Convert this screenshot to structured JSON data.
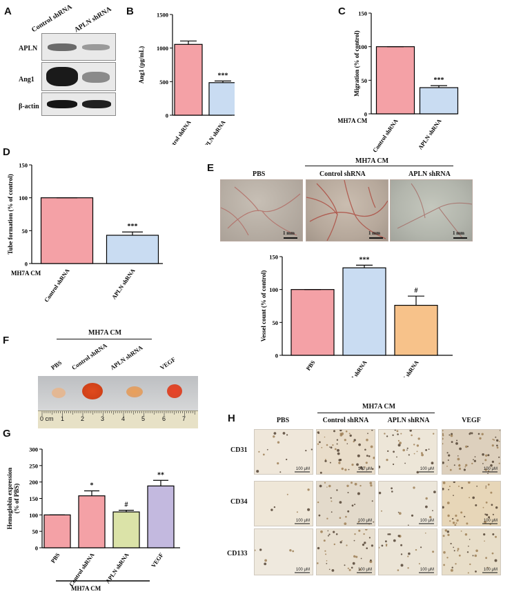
{
  "panels": {
    "A": {
      "label": "A",
      "col_labels": [
        "Control shRNA",
        "APLN shRNA"
      ],
      "row_labels": [
        "APLN",
        "Ang1",
        "β-actin"
      ]
    },
    "E": {
      "label": "E",
      "group_label": "MH7A CM",
      "photo_labels": [
        "PBS",
        "Control shRNA",
        "APLN shRNA"
      ],
      "scale_label": "1 mm"
    },
    "F": {
      "label": "F",
      "group_label": "MH7A CM",
      "sample_labels": [
        "PBS",
        "Control shRNA",
        "APLN shRNA",
        "VEGF"
      ],
      "ruler_labels": [
        "0 cm",
        "1",
        "2",
        "3",
        "4",
        "5",
        "6",
        "7"
      ]
    },
    "H": {
      "label": "H",
      "group_label": "MH7A CM",
      "col_labels": [
        "PBS",
        "Control shRNA",
        "APLN shRNA",
        "VEGF"
      ],
      "row_labels": [
        "CD31",
        "CD34",
        "CD133"
      ],
      "scale_label": "100 μM"
    }
  },
  "chart_data": [
    {
      "panel": "B",
      "type": "bar",
      "categories": [
        "Control shRNA",
        "APLN shRNA"
      ],
      "values": [
        1055,
        485
      ],
      "errors": [
        50,
        25
      ],
      "annotations": [
        "",
        "***"
      ],
      "colors": [
        "#f4a1a6",
        "#c9dcf2"
      ],
      "ylabel": "Ang1 (pg/mL)",
      "ylim": [
        0,
        1500
      ],
      "yticks": [
        0,
        500,
        1000,
        1500
      ],
      "xgroup_label": ""
    },
    {
      "panel": "C",
      "type": "bar",
      "categories": [
        "Control shRNA",
        "APLN shRNA"
      ],
      "values": [
        100,
        39
      ],
      "errors": [
        0,
        3
      ],
      "annotations": [
        "",
        "***"
      ],
      "colors": [
        "#f4a1a6",
        "#c9dcf2"
      ],
      "ylabel": "Migration (% of control)",
      "ylim": [
        0,
        150
      ],
      "yticks": [
        0,
        50,
        100,
        150
      ],
      "xgroup_label": "MH7A CM"
    },
    {
      "panel": "D",
      "type": "bar",
      "categories": [
        "Control shRNA",
        "APLN shRNA"
      ],
      "values": [
        100,
        43
      ],
      "errors": [
        0,
        5
      ],
      "annotations": [
        "",
        "***"
      ],
      "colors": [
        "#f4a1a6",
        "#c9dcf2"
      ],
      "ylabel": "Tube formation (% of control)",
      "ylim": [
        0,
        150
      ],
      "yticks": [
        0,
        50,
        100,
        150
      ],
      "xgroup_label": "MH7A CM"
    },
    {
      "panel": "E",
      "type": "bar",
      "categories": [
        "PBS",
        "Control shRNA",
        "APLN shRNA"
      ],
      "values": [
        100,
        133,
        76
      ],
      "errors": [
        0,
        4,
        14
      ],
      "annotations": [
        "",
        "***",
        "#"
      ],
      "colors": [
        "#f4a1a6",
        "#c9dcf2",
        "#f7c28a"
      ],
      "ylabel": "Vessel count (% of control)",
      "ylim": [
        0,
        150
      ],
      "yticks": [
        0,
        50,
        100,
        150
      ],
      "xgroup_label": ""
    },
    {
      "panel": "G",
      "type": "bar",
      "categories": [
        "PBS",
        "Control shRNA",
        "APLN shRNA",
        "VEGF"
      ],
      "values": [
        100,
        158,
        109,
        188
      ],
      "errors": [
        0,
        15,
        5,
        17
      ],
      "annotations": [
        "",
        "*",
        "#",
        "**"
      ],
      "colors": [
        "#f4a1a6",
        "#f4a1a6",
        "#dbe3a8",
        "#c3b9df"
      ],
      "ylabel": "Hemoglobin expression (% of PBS)",
      "ylim": [
        0,
        300
      ],
      "yticks": [
        0,
        50,
        100,
        150,
        200,
        250,
        300
      ],
      "xgroup_label": "MH7A CM"
    }
  ]
}
